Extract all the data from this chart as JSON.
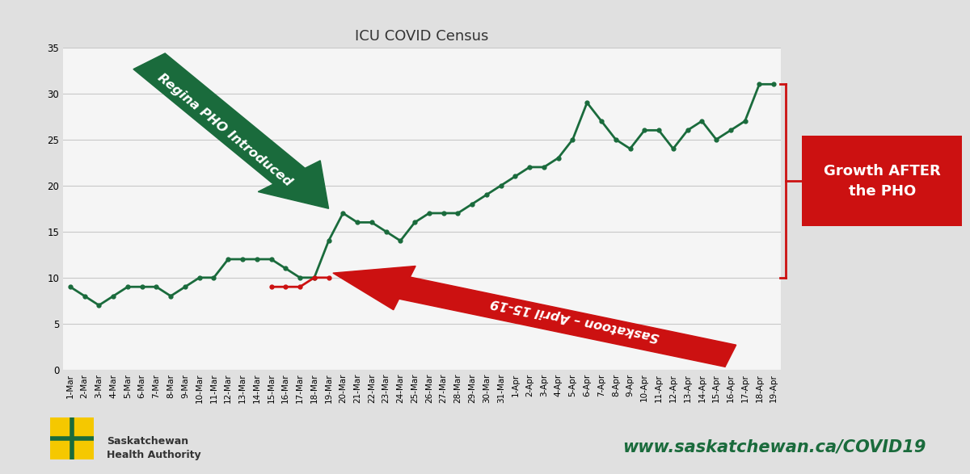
{
  "title": "ICU COVID Census",
  "bg_color": "#e0e0e0",
  "plot_bg": "#f5f5f5",
  "green": "#1a6b3c",
  "red": "#cc1111",
  "dates": [
    "1-Mar",
    "2-Mar",
    "3-Mar",
    "4-Mar",
    "5-Mar",
    "6-Mar",
    "7-Mar",
    "8-Mar",
    "9-Mar",
    "10-Mar",
    "11-Mar",
    "12-Mar",
    "13-Mar",
    "14-Mar",
    "15-Mar",
    "16-Mar",
    "17-Mar",
    "18-Mar",
    "19-Mar",
    "20-Mar",
    "21-Mar",
    "22-Mar",
    "23-Mar",
    "24-Mar",
    "25-Mar",
    "26-Mar",
    "27-Mar",
    "28-Mar",
    "29-Mar",
    "30-Mar",
    "31-Mar",
    "1-Apr",
    "2-Apr",
    "3-Apr",
    "4-Apr",
    "5-Apr",
    "6-Apr",
    "7-Apr",
    "8-Apr",
    "9-Apr",
    "10-Apr",
    "11-Apr",
    "12-Apr",
    "13-Apr",
    "14-Apr",
    "15-Apr",
    "16-Apr",
    "17-Apr",
    "18-Apr",
    "19-Apr"
  ],
  "green_y": [
    9,
    8,
    7,
    8,
    9,
    9,
    9,
    8,
    9,
    10,
    10,
    12,
    12,
    12,
    12,
    11,
    10,
    10,
    14,
    17,
    16,
    16,
    15,
    14,
    16,
    17,
    17,
    17,
    18,
    19,
    20,
    21,
    22,
    22,
    23,
    25,
    29,
    27,
    25,
    24,
    26,
    26,
    24,
    26,
    27,
    25,
    26,
    27,
    31,
    31
  ],
  "red_x": [
    14,
    15,
    16,
    17,
    18
  ],
  "red_y": [
    9,
    9,
    9,
    10,
    10
  ],
  "ylim": [
    0,
    35
  ],
  "yticks": [
    0,
    5,
    10,
    15,
    20,
    25,
    30,
    35
  ],
  "annotation_pho": "Regina PHO Introduced",
  "annotation_sask": "Saskatoon – April 15-19",
  "annotation_growth": "Growth AFTER\nthe PHO",
  "footer_url": "www.saskatchewan.ca/COVID19",
  "footer_org": "Saskatchewan\nHealth Authority"
}
